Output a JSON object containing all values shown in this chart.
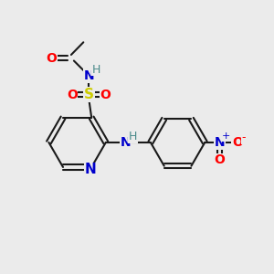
{
  "bg_color": "#ebebeb",
  "bond_color": "#1a1a1a",
  "colors": {
    "O": "#ff0000",
    "N": "#0000cc",
    "S": "#cccc00",
    "H": "#4a8a8a",
    "C": "#1a1a1a"
  },
  "figsize": [
    3.0,
    3.0
  ],
  "dpi": 100
}
